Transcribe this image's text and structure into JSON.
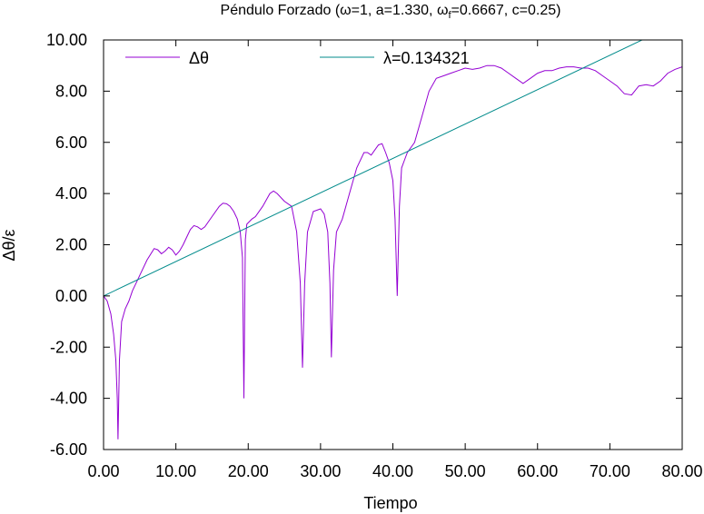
{
  "chart_data": {
    "type": "line",
    "title": "Péndulo Forzado (ω=1, a=1.330, ω f=0.6667, c=0.25)",
    "title_parts": {
      "before_sub": "Péndulo Forzado (ω=1, a=1.330, ω",
      "sub": "f",
      "after_sub": "=0.6667, c=0.25)"
    },
    "xlabel": "Tiempo",
    "ylabel": "Δθ/ε",
    "xlim": [
      0,
      80
    ],
    "ylim": [
      -6,
      10
    ],
    "xticks": [
      0,
      10,
      20,
      30,
      40,
      50,
      60,
      70,
      80
    ],
    "yticks": [
      -6,
      -4,
      -2,
      0,
      2,
      4,
      6,
      8,
      10
    ],
    "xtick_labels": [
      "0.00",
      "10.00",
      "20.00",
      "30.00",
      "40.00",
      "50.00",
      "60.00",
      "70.00",
      "80.00"
    ],
    "ytick_labels": [
      "-6.00",
      "-4.00",
      "-2.00",
      "0.00",
      "2.00",
      "4.00",
      "6.00",
      "8.00",
      "10.00"
    ],
    "grid": false,
    "legend_position": "top",
    "series": [
      {
        "name": "Δθ",
        "color": "#9400d3",
        "x": [
          0,
          0.5,
          1.0,
          1.4,
          1.7,
          1.9,
          2.0,
          2.2,
          2.5,
          3.0,
          3.5,
          4.0,
          4.5,
          5.0,
          6.0,
          7.0,
          7.5,
          8.0,
          8.5,
          9.0,
          9.5,
          10.0,
          10.5,
          11.0,
          11.5,
          12.0,
          12.5,
          13.0,
          13.5,
          14.0,
          15.0,
          16.0,
          16.5,
          17.0,
          17.5,
          18.0,
          18.5,
          18.9,
          19.2,
          19.4,
          19.6,
          19.8,
          20.5,
          21.0,
          22.0,
          23.0,
          23.5,
          24.0,
          25.0,
          26.0,
          26.7,
          27.2,
          27.5,
          27.8,
          28.2,
          29.0,
          30.0,
          30.5,
          31.0,
          31.3,
          31.5,
          31.8,
          32.2,
          33.0,
          34.0,
          35.0,
          36.0,
          36.5,
          37.0,
          38.0,
          38.5,
          39.0,
          39.5,
          40.0,
          40.3,
          40.6,
          40.9,
          41.2,
          41.6,
          42.0,
          43.0,
          44.0,
          45.0,
          46.0,
          47.0,
          48.0,
          49.0,
          50.0,
          51.0,
          52.0,
          53.0,
          54.0,
          55.0,
          56.0,
          57.0,
          58.0,
          59.0,
          60.0,
          61.0,
          62.0,
          63.0,
          64.0,
          65.0,
          66.0,
          67.0,
          68.0,
          69.0,
          70.0,
          71.0,
          72.0,
          73.0,
          74.0,
          75.0,
          76.0,
          77.0,
          78.0,
          79.0,
          80.0
        ],
        "y": [
          0,
          -0.2,
          -0.7,
          -1.5,
          -2.5,
          -4.0,
          -5.6,
          -2.5,
          -1.0,
          -0.5,
          -0.2,
          0.2,
          0.5,
          0.8,
          1.4,
          1.85,
          1.8,
          1.65,
          1.75,
          1.9,
          1.8,
          1.6,
          1.75,
          2.0,
          2.3,
          2.6,
          2.75,
          2.7,
          2.6,
          2.7,
          3.1,
          3.5,
          3.62,
          3.6,
          3.5,
          3.3,
          3.0,
          2.5,
          1.5,
          -4.0,
          2.2,
          2.8,
          3.0,
          3.1,
          3.5,
          4.0,
          4.1,
          4.0,
          3.7,
          3.5,
          2.5,
          0.5,
          -2.8,
          0.5,
          2.5,
          3.3,
          3.4,
          3.2,
          2.5,
          0.5,
          -2.4,
          1.0,
          2.5,
          3.0,
          4.0,
          5.0,
          5.6,
          5.6,
          5.5,
          5.9,
          5.95,
          5.6,
          5.2,
          4.5,
          3.0,
          0.0,
          3.5,
          5.0,
          5.3,
          5.6,
          6.0,
          7.0,
          8.0,
          8.5,
          8.6,
          8.7,
          8.8,
          8.9,
          8.85,
          8.9,
          9.0,
          9.0,
          8.9,
          8.7,
          8.5,
          8.3,
          8.5,
          8.7,
          8.8,
          8.8,
          8.9,
          8.95,
          8.95,
          8.9,
          8.9,
          8.8,
          8.6,
          8.4,
          8.2,
          7.9,
          7.85,
          8.2,
          8.25,
          8.2,
          8.4,
          8.7,
          8.85,
          8.95
        ]
      },
      {
        "name": "λ=0.134321",
        "color": "#008b8b",
        "x": [
          0,
          80
        ],
        "y": [
          0,
          10.7457
        ]
      }
    ]
  }
}
